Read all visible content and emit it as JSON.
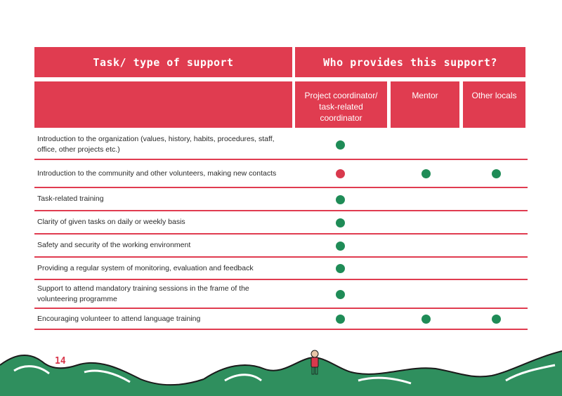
{
  "header": {
    "task_title": "Task/ type of support",
    "who_title": "Who provides this support?",
    "providers": [
      "Project coordinator/ task-related coordinator",
      "Mentor",
      "Other locals"
    ]
  },
  "colors": {
    "header_bg": "#e03c50",
    "dot_green": "#1f8c57",
    "dot_red": "#d9394d",
    "hill_green": "#2f8f5e"
  },
  "rows": [
    {
      "task": "Introduction to the organization (values, history, habits, procedures, staff, office, other projects etc.)",
      "marks": [
        "green",
        "",
        ""
      ]
    },
    {
      "task": "Introduction to the community and other volunteers, making new contacts",
      "marks": [
        "red",
        "green",
        "green"
      ]
    },
    {
      "task": "Task-related training",
      "marks": [
        "green",
        "",
        ""
      ]
    },
    {
      "task": "Clarity of given tasks on daily or weekly basis",
      "marks": [
        "green",
        "",
        ""
      ]
    },
    {
      "task": "Safety and security of the working environment",
      "marks": [
        "green",
        "",
        ""
      ]
    },
    {
      "task": "Providing a regular system of monitoring, evaluation and feedback",
      "marks": [
        "green",
        "",
        ""
      ]
    },
    {
      "task": "Support to attend mandatory training sessions in the frame of the volunteering programme",
      "marks": [
        "green",
        "",
        ""
      ]
    },
    {
      "task": "Encouraging volunteer to attend language training",
      "marks": [
        "green",
        "green",
        "green"
      ]
    }
  ],
  "page_number": "14"
}
